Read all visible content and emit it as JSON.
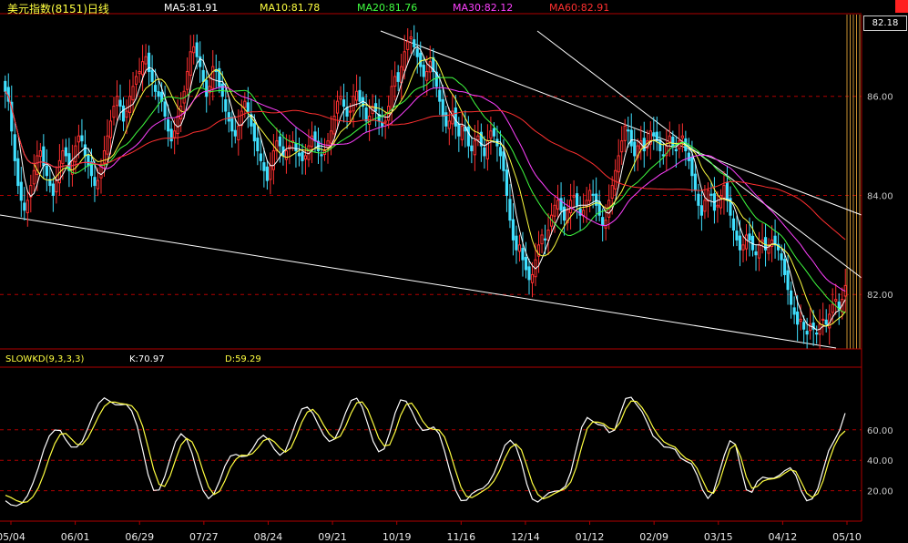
{
  "header": {
    "title": "美元指数(8151)日线",
    "ma": [
      {
        "label": "MA5:81.91",
        "color": "#ffffff"
      },
      {
        "label": "MA10:81.78",
        "color": "#ffff40"
      },
      {
        "label": "MA20:81.76",
        "color": "#40ff40"
      },
      {
        "label": "MA30:82.12",
        "color": "#ff40ff"
      },
      {
        "label": "MA60:82.91",
        "color": "#ff3030"
      }
    ],
    "last_price": "82.18"
  },
  "kd_header": {
    "name": "SLOWKD(9,3,3,3)",
    "k": "K:70.97",
    "d": "D:59.29"
  },
  "chart_data": [
    {
      "type": "candlestick",
      "title": "美元指数(8151)日线",
      "ylim": [
        80.9,
        87.65
      ],
      "yticks": [
        "86.00",
        "84.00",
        "82.00"
      ],
      "x_labels": [
        "05/04",
        "06/01",
        "06/29",
        "07/27",
        "08/24",
        "09/21",
        "10/19",
        "11/16",
        "12/14",
        "01/12",
        "02/09",
        "03/15",
        "04/12",
        "05/10"
      ],
      "up_color": "#ff3030",
      "down_color": "#40e0ff",
      "closes": [
        86.1,
        85.9,
        85.3,
        84.7,
        84.2,
        83.9,
        83.7,
        83.9,
        84.2,
        84.5,
        84.8,
        84.9,
        84.6,
        84.4,
        84.2,
        84.0,
        84.3,
        84.7,
        84.9,
        84.8,
        84.5,
        84.7,
        85.0,
        85.2,
        85.1,
        84.8,
        84.6,
        84.4,
        84.2,
        84.3,
        84.6,
        84.9,
        85.2,
        85.5,
        85.8,
        86.0,
        85.8,
        85.5,
        85.7,
        86.0,
        86.2,
        86.4,
        86.5,
        86.7,
        86.8,
        86.5,
        86.3,
        86.1,
        86.0,
        85.9,
        85.6,
        85.3,
        85.1,
        85.3,
        85.6,
        85.8,
        86.1,
        86.5,
        86.9,
        87.0,
        86.8,
        86.6,
        86.3,
        86.0,
        86.2,
        86.6,
        86.5,
        86.2,
        86.0,
        85.7,
        85.5,
        85.3,
        85.2,
        85.4,
        85.7,
        85.9,
        85.7,
        85.4,
        85.1,
        84.9,
        84.7,
        84.5,
        84.3,
        84.6,
        84.9,
        85.1,
        85.0,
        84.8,
        84.9,
        85.0,
        85.1,
        84.9,
        84.8,
        84.7,
        84.8,
        85.0,
        85.2,
        85.1,
        84.9,
        84.8,
        84.9,
        85.1,
        85.3,
        85.6,
        85.9,
        86.0,
        85.8,
        85.6,
        85.7,
        86.0,
        86.1,
        85.9,
        85.8,
        85.5,
        85.6,
        85.8,
        85.7,
        85.5,
        85.4,
        85.5,
        85.8,
        86.2,
        86.4,
        86.3,
        86.6,
        86.9,
        87.1,
        87.2,
        87.0,
        86.8,
        86.6,
        86.4,
        86.5,
        86.7,
        86.5,
        86.2,
        85.9,
        85.6,
        85.4,
        85.5,
        85.7,
        85.4,
        85.2,
        85.4,
        85.3,
        85.0,
        84.9,
        85.1,
        85.2,
        85.0,
        84.8,
        85.1,
        85.3,
        85.2,
        85.0,
        84.8,
        84.5,
        84.0,
        83.5,
        83.1,
        82.9,
        83.0,
        82.7,
        82.5,
        82.3,
        82.4,
        82.7,
        83.0,
        83.2,
        83.1,
        83.3,
        83.6,
        83.8,
        83.9,
        83.7,
        83.5,
        83.7,
        83.9,
        84.0,
        83.8,
        83.6,
        83.7,
        83.9,
        84.1,
        84.0,
        83.8,
        83.6,
        83.4,
        83.5,
        83.9,
        84.2,
        84.5,
        84.8,
        85.1,
        85.4,
        85.3,
        85.0,
        84.8,
        85.0,
        85.1,
        84.9,
        85.1,
        85.3,
        85.2,
        85.1,
        84.9,
        84.8,
        85.0,
        85.2,
        85.0,
        84.9,
        85.1,
        85.2,
        84.9,
        84.7,
        84.4,
        84.1,
        83.8,
        83.6,
        83.9,
        84.1,
        84.0,
        83.7,
        83.8,
        84.0,
        84.2,
        83.9,
        83.6,
        83.3,
        83.1,
        82.9,
        83.0,
        83.2,
        83.1,
        82.9,
        82.8,
        83.0,
        83.1,
        82.9,
        83.0,
        83.1,
        83.0,
        82.9,
        82.7,
        82.4,
        82.1,
        81.8,
        81.6,
        81.4,
        81.5,
        81.3,
        81.2,
        81.4,
        81.3,
        81.2,
        81.4,
        81.5,
        81.4,
        81.6,
        81.8,
        81.9,
        81.7,
        81.9,
        82.18
      ]
    },
    {
      "type": "line",
      "title": "SLOWKD(9,3,3,3)",
      "ylim": [
        0,
        100
      ],
      "yticks": [
        "60.00",
        "40.00",
        "20.00"
      ],
      "series": [
        {
          "name": "K",
          "color": "#ffffff",
          "values": [
            13.4,
            10.7,
            10.0,
            11.8,
            16.7,
            24.9,
            35.2,
            47.1,
            56.0,
            59.9,
            59.5,
            53.4,
            48.7,
            48.7,
            52.7,
            60.9,
            70.0,
            77.5,
            81.0,
            78.8,
            76.5,
            76.4,
            76.8,
            72.4,
            62.6,
            46.7,
            30.4,
            20.2,
            20.5,
            29.1,
            41.0,
            52.2,
            57.4,
            54.0,
            44.5,
            31.2,
            20.2,
            14.8,
            18.1,
            26.3,
            36.2,
            42.8,
            43.9,
            42.4,
            42.9,
            47.4,
            53.5,
            56.4,
            53.3,
            47.2,
            43.3,
            46.2,
            55.3,
            65.5,
            73.7,
            75.0,
            70.9,
            63.4,
            56.5,
            52.4,
            54.0,
            61.5,
            71.4,
            79.3,
            80.8,
            75.1,
            64.1,
            52.4,
            45.6,
            47.5,
            57.9,
            71.1,
            79.7,
            78.8,
            72.5,
            64.7,
            59.6,
            60.2,
            61.9,
            57.4,
            46.1,
            32.6,
            20.6,
            13.5,
            13.8,
            18.1,
            20.3,
            21.6,
            25.0,
            31.3,
            40.4,
            49.9,
            53.2,
            49.2,
            38.6,
            24.3,
            14.5,
            12.6,
            15.5,
            18.6,
            19.6,
            20.0,
            22.8,
            32.1,
            47.1,
            61.7,
            68.1,
            65.6,
            63.5,
            62.8,
            58.2,
            59.8,
            70.6,
            80.6,
            81.4,
            76.6,
            71.9,
            64.2,
            55.9,
            52.8,
            48.8,
            48.4,
            47.1,
            41.5,
            39.4,
            37.6,
            30.4,
            20.7,
            14.9,
            19.4,
            31.4,
            43.4,
            52.8,
            50.5,
            34.7,
            20.6,
            19.0,
            26.1,
            28.9,
            28.1,
            28.2,
            30.1,
            33.2,
            35.1,
            30.2,
            19.9,
            13.4,
            14.6,
            21.3,
            33.8,
            46.3,
            52.8,
            59.8,
            70.97
          ]
        },
        {
          "name": "D",
          "color": "#ffff40",
          "values": [
            17.0,
            15.5,
            13.5,
            12.3,
            12.7,
            16.0,
            22.0,
            31.0,
            41.8,
            51.0,
            57.1,
            57.6,
            54.1,
            50.5,
            50.4,
            54.6,
            61.6,
            69.1,
            75.3,
            78.2,
            78.2,
            77.3,
            76.8,
            75.8,
            71.6,
            62.3,
            48.5,
            34.0,
            24.2,
            22.8,
            29.7,
            40.4,
            50.1,
            54.4,
            52.1,
            44.3,
            32.9,
            22.6,
            17.5,
            19.6,
            26.6,
            35.3,
            40.7,
            43.4,
            43.1,
            44.4,
            48.2,
            52.8,
            54.4,
            52.1,
            48.1,
            45.4,
            48.1,
            55.9,
            65.0,
            71.7,
            73.4,
            69.5,
            63.0,
            57.3,
            54.1,
            55.8,
            62.5,
            71.0,
            77.7,
            78.4,
            73.4,
            64.2,
            54.6,
            49.5,
            50.1,
            58.7,
            69.6,
            76.6,
            77.6,
            72.6,
            65.8,
            61.4,
            60.3,
            59.9,
            55.3,
            45.3,
            33.4,
            22.3,
            16.2,
            15.5,
            17.5,
            19.8,
            22.1,
            26.2,
            32.9,
            41.4,
            48.2,
            50.7,
            46.9,
            36.3,
            25.0,
            17.6,
            14.6,
            16.0,
            18.1,
            19.8,
            21.4,
            25.7,
            35.2,
            48.8,
            60.9,
            65.2,
            65.0,
            64.0,
            61.1,
            60.2,
            64.9,
            73.8,
            79.0,
            78.6,
            74.6,
            68.9,
            61.6,
            56.1,
            52.1,
            50.1,
            48.6,
            44.5,
            41.2,
            39.5,
            34.8,
            27.1,
            19.6,
            18.3,
            24.7,
            36.2,
            47.5,
            50.2,
            41.9,
            28.9,
            21.6,
            22.8,
            26.2,
            27.5,
            27.9,
            29.0,
            31.5,
            33.8,
            32.7,
            25.7,
            18.3,
            15.6,
            18.0,
            26.6,
            39.1,
            49.1,
            56.0,
            59.29
          ]
        }
      ]
    }
  ]
}
